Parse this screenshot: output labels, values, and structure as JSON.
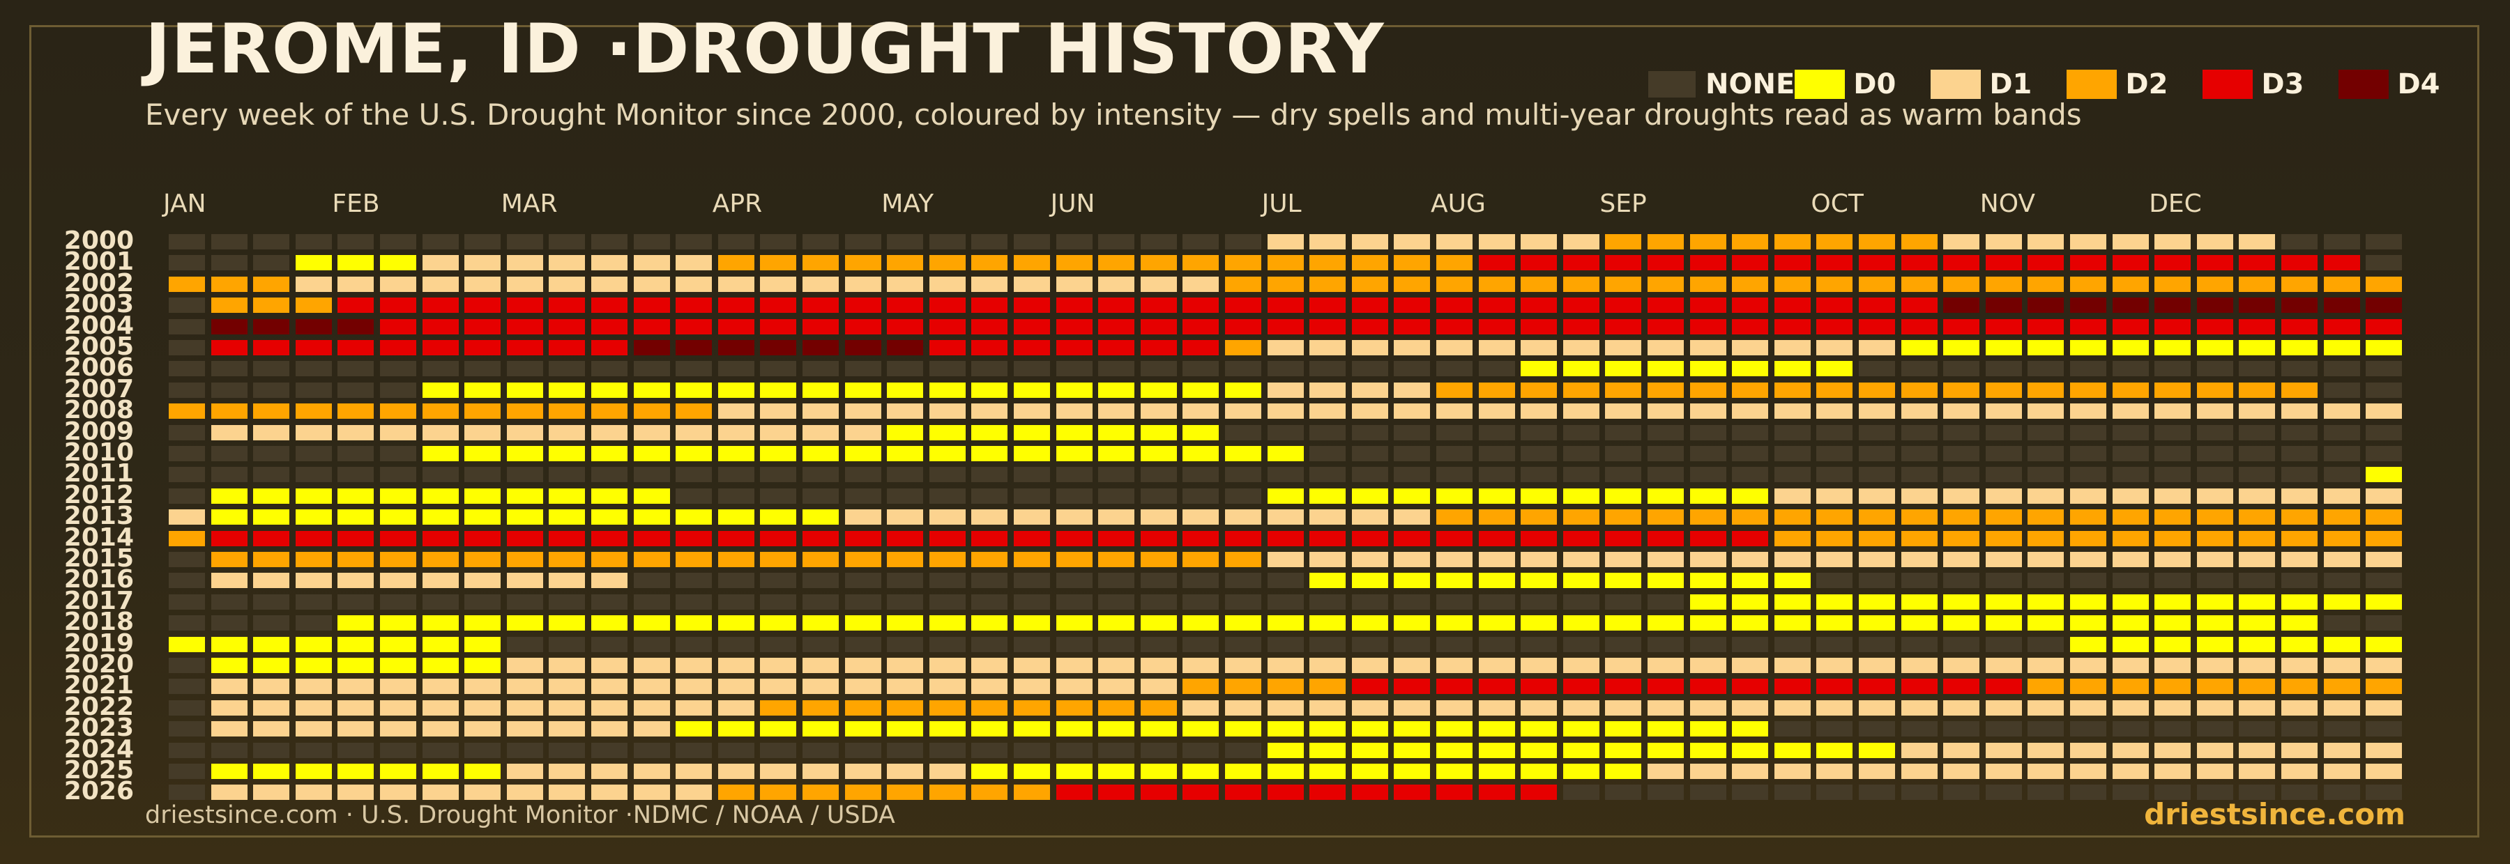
{
  "title": "JEROME, ID ·DROUGHT HISTORY",
  "subtitle": "Every week of the U.S. Drought Monitor since 2000, coloured by intensity — dry spells and multi-year droughts read as warm bands",
  "legend": [
    {
      "label": "NONE",
      "color": "#453b28"
    },
    {
      "label": "D0",
      "color": "#ffff00"
    },
    {
      "label": "D1",
      "color": "#fcd38f"
    },
    {
      "label": "D2",
      "color": "#ffa500"
    },
    {
      "label": "D3",
      "color": "#e60000"
    },
    {
      "label": "D4",
      "color": "#730000"
    }
  ],
  "footer": {
    "source": "driestsince.com  · U.S. Drought Monitor ·NDMC / NOAA / USDA",
    "brand": "driestsince.com"
  },
  "chart_data": {
    "type": "heatmap",
    "title": "JEROME, ID ·DROUGHT HISTORY",
    "x_months": [
      "JAN",
      "FEB",
      "MAR",
      "APR",
      "MAY",
      "JUN",
      "JUL",
      "AUG",
      "SEP",
      "OCT",
      "NOV",
      "DEC"
    ],
    "x_month_start_week": [
      0,
      4,
      8,
      13,
      17,
      21,
      26,
      30,
      34,
      39,
      43,
      47
    ],
    "weeks_per_year": 53,
    "categories": [
      "NONE",
      "D0",
      "D1",
      "D2",
      "D3",
      "D4"
    ],
    "rows": [
      {
        "year": "2000",
        "segments": [
          [
            0,
            26,
            0
          ],
          [
            26,
            8,
            2
          ],
          [
            34,
            8,
            3
          ],
          [
            42,
            8,
            2
          ],
          [
            50,
            3,
            0
          ]
        ]
      },
      {
        "year": "2001",
        "segments": [
          [
            0,
            3,
            0
          ],
          [
            3,
            3,
            1
          ],
          [
            6,
            7,
            2
          ],
          [
            13,
            18,
            3
          ],
          [
            31,
            21,
            4
          ],
          [
            52,
            1,
            0
          ]
        ]
      },
      {
        "year": "2002",
        "segments": [
          [
            0,
            3,
            3
          ],
          [
            3,
            22,
            2
          ],
          [
            25,
            14,
            3
          ],
          [
            39,
            14,
            3
          ]
        ]
      },
      {
        "year": "2003",
        "segments": [
          [
            0,
            1,
            0
          ],
          [
            1,
            3,
            3
          ],
          [
            4,
            38,
            4
          ],
          [
            42,
            11,
            5
          ]
        ]
      },
      {
        "year": "2004",
        "segments": [
          [
            0,
            1,
            0
          ],
          [
            1,
            4,
            5
          ],
          [
            5,
            48,
            4
          ]
        ]
      },
      {
        "year": "2005",
        "segments": [
          [
            0,
            1,
            0
          ],
          [
            1,
            10,
            4
          ],
          [
            11,
            7,
            5
          ],
          [
            18,
            7,
            4
          ],
          [
            25,
            1,
            3
          ],
          [
            26,
            15,
            2
          ],
          [
            41,
            12,
            1
          ]
        ]
      },
      {
        "year": "2006",
        "segments": [
          [
            0,
            32,
            0
          ],
          [
            32,
            8,
            1
          ],
          [
            40,
            13,
            0
          ]
        ]
      },
      {
        "year": "2007",
        "segments": [
          [
            0,
            6,
            0
          ],
          [
            6,
            20,
            1
          ],
          [
            26,
            4,
            2
          ],
          [
            30,
            21,
            3
          ],
          [
            51,
            2,
            0
          ]
        ]
      },
      {
        "year": "2008",
        "segments": [
          [
            0,
            13,
            3
          ],
          [
            13,
            40,
            2
          ]
        ]
      },
      {
        "year": "2009",
        "segments": [
          [
            0,
            1,
            0
          ],
          [
            1,
            16,
            2
          ],
          [
            17,
            8,
            1
          ],
          [
            25,
            28,
            0
          ]
        ]
      },
      {
        "year": "2010",
        "segments": [
          [
            0,
            6,
            0
          ],
          [
            6,
            21,
            1
          ],
          [
            27,
            26,
            0
          ]
        ]
      },
      {
        "year": "2011",
        "segments": [
          [
            0,
            52,
            0
          ],
          [
            52,
            1,
            1
          ]
        ]
      },
      {
        "year": "2012",
        "segments": [
          [
            0,
            1,
            0
          ],
          [
            1,
            11,
            1
          ],
          [
            12,
            14,
            0
          ],
          [
            26,
            12,
            1
          ],
          [
            38,
            15,
            2
          ]
        ]
      },
      {
        "year": "2013",
        "segments": [
          [
            0,
            1,
            2
          ],
          [
            1,
            15,
            1
          ],
          [
            16,
            14,
            2
          ],
          [
            30,
            5,
            3
          ],
          [
            35,
            18,
            3
          ]
        ]
      },
      {
        "year": "2014",
        "segments": [
          [
            0,
            1,
            3
          ],
          [
            1,
            37,
            4
          ],
          [
            38,
            15,
            3
          ]
        ]
      },
      {
        "year": "2015",
        "segments": [
          [
            0,
            1,
            0
          ],
          [
            1,
            25,
            3
          ],
          [
            26,
            27,
            2
          ]
        ]
      },
      {
        "year": "2016",
        "segments": [
          [
            0,
            1,
            0
          ],
          [
            1,
            10,
            2
          ],
          [
            11,
            16,
            0
          ],
          [
            27,
            12,
            1
          ],
          [
            39,
            14,
            0
          ]
        ]
      },
      {
        "year": "2017",
        "segments": [
          [
            0,
            36,
            0
          ],
          [
            36,
            6,
            1
          ],
          [
            42,
            12,
            1
          ]
        ]
      },
      {
        "year": "2018",
        "segments": [
          [
            0,
            4,
            0
          ],
          [
            4,
            47,
            1
          ],
          [
            51,
            2,
            0
          ]
        ]
      },
      {
        "year": "2019",
        "segments": [
          [
            0,
            8,
            1
          ],
          [
            8,
            37,
            0
          ],
          [
            45,
            8,
            1
          ]
        ]
      },
      {
        "year": "2020",
        "segments": [
          [
            0,
            1,
            0
          ],
          [
            1,
            7,
            1
          ],
          [
            8,
            45,
            2
          ]
        ]
      },
      {
        "year": "2021",
        "segments": [
          [
            0,
            1,
            0
          ],
          [
            1,
            23,
            2
          ],
          [
            24,
            4,
            3
          ],
          [
            28,
            16,
            4
          ],
          [
            44,
            9,
            3
          ]
        ]
      },
      {
        "year": "2022",
        "segments": [
          [
            0,
            1,
            0
          ],
          [
            1,
            13,
            2
          ],
          [
            14,
            10,
            3
          ],
          [
            24,
            29,
            2
          ]
        ]
      },
      {
        "year": "2023",
        "segments": [
          [
            0,
            1,
            0
          ],
          [
            1,
            11,
            2
          ],
          [
            12,
            26,
            1
          ],
          [
            38,
            15,
            0
          ]
        ]
      },
      {
        "year": "2024",
        "segments": [
          [
            0,
            26,
            0
          ],
          [
            26,
            13,
            1
          ],
          [
            39,
            2,
            1
          ],
          [
            41,
            12,
            2
          ]
        ]
      },
      {
        "year": "2025",
        "segments": [
          [
            0,
            1,
            0
          ],
          [
            1,
            7,
            1
          ],
          [
            8,
            11,
            2
          ],
          [
            19,
            16,
            1
          ],
          [
            35,
            18,
            2
          ]
        ]
      },
      {
        "year": "2026",
        "segments": [
          [
            0,
            1,
            0
          ],
          [
            1,
            12,
            2
          ],
          [
            13,
            8,
            3
          ],
          [
            21,
            12,
            4
          ],
          [
            33,
            20,
            0
          ]
        ]
      }
    ]
  }
}
